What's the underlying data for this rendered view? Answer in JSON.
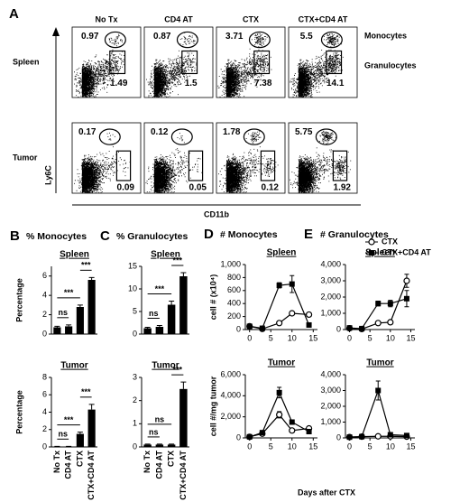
{
  "flow_panel": {
    "panel_label": "A",
    "columns": [
      "No Tx",
      "CD4 AT",
      "CTX",
      "CTX+CD4 AT"
    ],
    "rows": [
      {
        "label": "Spleen",
        "monocytes": [
          0.97,
          0.87,
          3.71,
          5.5
        ],
        "granulocytes": [
          1.49,
          1.5,
          7.38,
          14.1
        ]
      },
      {
        "label": "Tumor",
        "monocytes": [
          0.17,
          0.12,
          1.78,
          5.75
        ],
        "granulocytes": [
          0.09,
          0.05,
          0.12,
          1.92
        ]
      }
    ],
    "gate_labels": [
      "Monocytes",
      "Granulocytes"
    ],
    "y_axis": "Ly6C",
    "x_axis": "CD11b"
  },
  "shared_xlabel": "Days after CTX",
  "chart_data": [
    {
      "type": "bar",
      "panel_label": "B",
      "header": "% Monocytes",
      "title": "Spleen",
      "ylabel": "Percentage",
      "categories": [
        null,
        null,
        null,
        null
      ],
      "values": [
        0.7,
        0.8,
        2.8,
        5.6
      ],
      "errors": [
        0.1,
        0.15,
        0.2,
        0.25
      ],
      "color": "#000000",
      "ylim": [
        0,
        7
      ],
      "yticks": [
        0,
        2,
        4,
        6
      ],
      "comparisons": [
        {
          "between": [
            0,
            1
          ],
          "label": "ns"
        },
        {
          "between": [
            0,
            2
          ],
          "label": "***"
        },
        {
          "between": [
            2,
            3
          ],
          "label": "***"
        }
      ]
    },
    {
      "type": "bar",
      "title": "Tumor",
      "ylabel": "Percentage",
      "categories": [
        "No Tx",
        "CD4 AT",
        "CTX",
        "CTX+CD4 AT"
      ],
      "values": [
        0.05,
        0.05,
        1.5,
        4.3
      ],
      "errors": [
        0.02,
        0.02,
        0.2,
        0.6
      ],
      "color": "#000000",
      "ylim": [
        0,
        8
      ],
      "yticks": [
        0,
        2,
        4,
        6,
        8
      ],
      "comparisons": [
        {
          "between": [
            0,
            1
          ],
          "label": "ns"
        },
        {
          "between": [
            0,
            2
          ],
          "label": "***"
        },
        {
          "between": [
            2,
            3
          ],
          "label": "***"
        }
      ]
    },
    {
      "type": "bar",
      "panel_label": "C",
      "header": "% Granulocytes",
      "title": "Spleen",
      "categories": [
        null,
        null,
        null,
        null
      ],
      "values": [
        1.3,
        1.6,
        6.5,
        12.8
      ],
      "errors": [
        0.2,
        0.3,
        0.8,
        0.8
      ],
      "color": "#000000",
      "ylim": [
        0,
        15
      ],
      "yticks": [
        0,
        5,
        10,
        15
      ],
      "comparisons": [
        {
          "between": [
            0,
            1
          ],
          "label": "ns"
        },
        {
          "between": [
            0,
            2
          ],
          "label": "***"
        },
        {
          "between": [
            2,
            3
          ],
          "label": "***"
        }
      ]
    },
    {
      "type": "bar",
      "title": "Tumor",
      "categories": [
        "No Tx",
        "CD4 AT",
        "CTX",
        "CTX+CD4 AT"
      ],
      "values": [
        0.1,
        0.1,
        0.1,
        2.5
      ],
      "errors": [
        0.02,
        0.02,
        0.02,
        0.3
      ],
      "color": "#000000",
      "ylim": [
        0,
        3
      ],
      "yticks": [
        0,
        1,
        2,
        3
      ],
      "comparisons": [
        {
          "between": [
            0,
            1
          ],
          "label": "ns"
        },
        {
          "between": [
            0,
            2
          ],
          "label": "ns"
        },
        {
          "between": [
            2,
            3
          ],
          "label": "***"
        }
      ]
    },
    {
      "type": "line",
      "panel_label": "D",
      "header": "# Monocytes",
      "title": "Spleen",
      "ylabel": "cell # (x10⁴)",
      "x": [
        0,
        3,
        7,
        10,
        14
      ],
      "xlim": [
        -1,
        16
      ],
      "xticks": [
        0,
        5,
        10,
        15
      ],
      "ylim": [
        0,
        1000
      ],
      "yticks": [
        0,
        200,
        400,
        600,
        800,
        {
          "value": 1000,
          "label": "1,000"
        }
      ],
      "series": [
        {
          "marker": "circle",
          "color": "#000000",
          "values": [
            50,
            10,
            100,
            250,
            230
          ],
          "errors": [
            10,
            5,
            15,
            20,
            20
          ]
        },
        {
          "marker": "square",
          "color": "#000000",
          "values": [
            50,
            20,
            680,
            700,
            70
          ],
          "errors": [
            10,
            5,
            40,
            130,
            15
          ]
        }
      ]
    },
    {
      "type": "line",
      "title": "Tumor",
      "ylabel": "cell #/mg tumor",
      "x": [
        0,
        3,
        7,
        10,
        14
      ],
      "xlim": [
        -1,
        16
      ],
      "xticks": [
        0,
        5,
        10,
        15
      ],
      "ylim": [
        0,
        6000
      ],
      "yticks": [
        0,
        {
          "value": 2000,
          "label": "2,000"
        },
        {
          "value": 4000,
          "label": "4,000"
        },
        {
          "value": 6000,
          "label": "6,000"
        }
      ],
      "series": [
        {
          "marker": "circle",
          "color": "#000000",
          "values": [
            100,
            400,
            2200,
            700,
            900
          ],
          "errors": [
            30,
            80,
            300,
            100,
            100
          ]
        },
        {
          "marker": "square",
          "color": "#000000",
          "values": [
            100,
            500,
            4300,
            1500,
            600
          ],
          "errors": [
            30,
            80,
            500,
            200,
            100
          ]
        }
      ]
    },
    {
      "type": "line",
      "panel_label": "E",
      "header": "# Granulocytes",
      "title": "Spleen",
      "x": [
        0,
        3,
        7,
        10,
        14
      ],
      "xlim": [
        -1,
        16
      ],
      "xticks": [
        0,
        5,
        10,
        15
      ],
      "ylim": [
        0,
        4000
      ],
      "yticks": [
        0,
        {
          "value": 1000,
          "label": "1,000"
        },
        {
          "value": 2000,
          "label": "2,000"
        },
        {
          "value": 3000,
          "label": "3,000"
        },
        {
          "value": 4000,
          "label": "4,000"
        }
      ],
      "legend": "upper right",
      "series": [
        {
          "name": "CTX",
          "marker": "circle",
          "color": "#000000",
          "values": [
            80,
            30,
            400,
            450,
            3000
          ],
          "errors": [
            20,
            10,
            60,
            60,
            400
          ]
        },
        {
          "name": "CTX+CD4 AT",
          "marker": "square",
          "color": "#000000",
          "values": [
            100,
            60,
            1600,
            1600,
            1900
          ],
          "errors": [
            20,
            10,
            150,
            200,
            500
          ]
        }
      ]
    },
    {
      "type": "line",
      "title": "Tumor",
      "x": [
        0,
        3,
        7,
        10,
        14
      ],
      "xlim": [
        -1,
        16
      ],
      "xticks": [
        0,
        5,
        10,
        15
      ],
      "ylim": [
        0,
        4000
      ],
      "yticks": [
        0,
        {
          "value": 1000,
          "label": "1,000"
        },
        {
          "value": 2000,
          "label": "2,000"
        },
        {
          "value": 3000,
          "label": "3,000"
        },
        {
          "value": 4000,
          "label": "4,000"
        }
      ],
      "series": [
        {
          "marker": "circle",
          "color": "#000000",
          "values": [
            50,
            80,
            100,
            100,
            80
          ],
          "errors": [
            10,
            10,
            20,
            20,
            10
          ]
        },
        {
          "marker": "square",
          "color": "#000000",
          "values": [
            50,
            80,
            3000,
            200,
            150
          ],
          "errors": [
            10,
            10,
            600,
            40,
            30
          ]
        }
      ]
    }
  ]
}
